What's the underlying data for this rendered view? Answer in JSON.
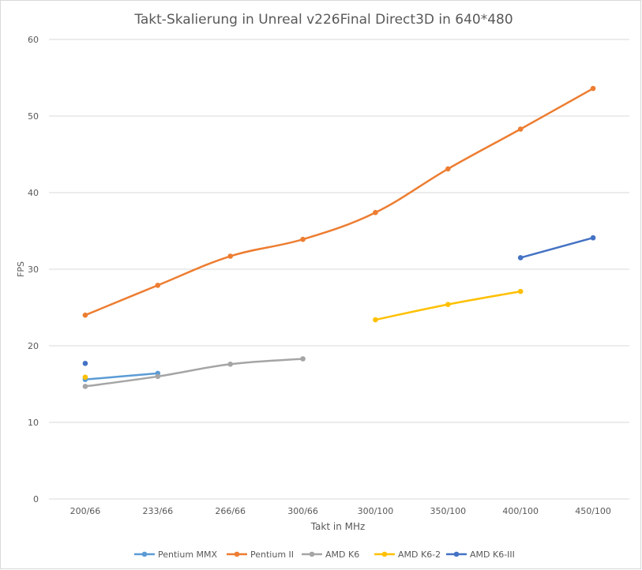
{
  "chart_data": {
    "type": "line",
    "title": "Takt-Skalierung in Unreal v226Final Direct3D in 640*480",
    "xlabel": "Takt in MHz",
    "ylabel": "FPS",
    "ylim": [
      0,
      60
    ],
    "yticks": [
      0,
      10,
      20,
      30,
      40,
      50,
      60
    ],
    "grid": true,
    "legend_position": "bottom",
    "categories": [
      "200/66",
      "233/66",
      "266/66",
      "300/66",
      "300/100",
      "350/100",
      "400/100",
      "450/100"
    ],
    "series": [
      {
        "name": "Pentium MMX",
        "color": "#5B9BD5",
        "values": [
          15.6,
          16.4,
          null,
          null,
          null,
          null,
          null,
          null
        ]
      },
      {
        "name": "Pentium II",
        "color": "#ED7D31",
        "values": [
          24.0,
          27.9,
          31.7,
          33.9,
          37.4,
          43.1,
          48.3,
          53.6
        ]
      },
      {
        "name": "AMD K6",
        "color": "#A5A5A5",
        "values": [
          14.7,
          16.0,
          17.6,
          18.3,
          null,
          null,
          null,
          null
        ]
      },
      {
        "name": "AMD K6-2",
        "color": "#FFC000",
        "values": [
          15.9,
          null,
          null,
          null,
          23.4,
          25.4,
          27.1,
          null
        ]
      },
      {
        "name": "AMD K6-III",
        "color": "#4472C4",
        "values": [
          17.7,
          null,
          null,
          null,
          null,
          null,
          31.5,
          34.1
        ]
      }
    ]
  }
}
